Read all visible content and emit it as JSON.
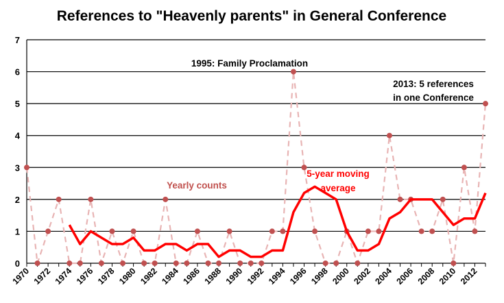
{
  "chart_data": {
    "type": "line",
    "title": "References to \"Heavenly parents\" in General Conference",
    "ylim": [
      0,
      7
    ],
    "yticks": [
      0,
      1,
      2,
      3,
      4,
      5,
      6,
      7
    ],
    "xlim": [
      1970,
      2013
    ],
    "xtick_labels": [
      "1970",
      "1972",
      "1974",
      "1976",
      "1978",
      "1980",
      "1982",
      "1984",
      "1986",
      "1988",
      "1990",
      "1992",
      "1994",
      "1996",
      "1998",
      "2000",
      "2002",
      "2004",
      "2006",
      "2008",
      "2010",
      "2012"
    ],
    "grid": true,
    "legend": "none",
    "series": [
      {
        "label": "Yearly counts",
        "style": "dashed",
        "color": "#e8b4b4",
        "marker_color": "#c05050",
        "x": [
          1970,
          1971,
          1972,
          1973,
          1974,
          1975,
          1976,
          1977,
          1978,
          1979,
          1980,
          1981,
          1982,
          1983,
          1984,
          1985,
          1986,
          1987,
          1988,
          1989,
          1990,
          1991,
          1992,
          1993,
          1994,
          1995,
          1996,
          1997,
          1998,
          1999,
          2000,
          2001,
          2002,
          2003,
          2004,
          2005,
          2006,
          2007,
          2008,
          2009,
          2010,
          2011,
          2012,
          2013
        ],
        "values": [
          3,
          0,
          1,
          2,
          0,
          0,
          2,
          0,
          1,
          0,
          1,
          0,
          0,
          2,
          0,
          0,
          1,
          0,
          0,
          1,
          0,
          0,
          0,
          1,
          1,
          6,
          3,
          1,
          0,
          0,
          1,
          0,
          1,
          1,
          4,
          2,
          2,
          1,
          1,
          2,
          0,
          3,
          1,
          5
        ]
      },
      {
        "label": "5-year moving average",
        "style": "solid",
        "color": "#ff0000",
        "x": [
          1974,
          1975,
          1976,
          1977,
          1978,
          1979,
          1980,
          1981,
          1982,
          1983,
          1984,
          1985,
          1986,
          1987,
          1988,
          1989,
          1990,
          1991,
          1992,
          1993,
          1994,
          1995,
          1996,
          1997,
          1998,
          1999,
          2000,
          2001,
          2002,
          2003,
          2004,
          2005,
          2006,
          2007,
          2008,
          2009,
          2010,
          2011,
          2012,
          2013
        ],
        "values": [
          1.2,
          0.6,
          1.0,
          0.8,
          0.6,
          0.6,
          0.8,
          0.4,
          0.4,
          0.6,
          0.6,
          0.4,
          0.6,
          0.6,
          0.2,
          0.4,
          0.4,
          0.2,
          0.2,
          0.4,
          0.4,
          1.6,
          2.2,
          2.4,
          2.2,
          2.0,
          1.0,
          0.4,
          0.4,
          0.6,
          1.4,
          1.6,
          2.0,
          2.0,
          2.0,
          1.6,
          1.2,
          1.4,
          1.4,
          2.2
        ]
      }
    ],
    "annotations": [
      {
        "text": "1995: Family Proclamation",
        "color": "#000000"
      },
      {
        "text": "2013: 5 references",
        "color": "#000000"
      },
      {
        "text": "in one Conference",
        "color": "#000000"
      },
      {
        "text": "Yearly counts",
        "color": "#c0504d"
      },
      {
        "text": "5-year moving",
        "color": "#ff0000"
      },
      {
        "text": "average",
        "color": "#ff0000"
      }
    ]
  }
}
